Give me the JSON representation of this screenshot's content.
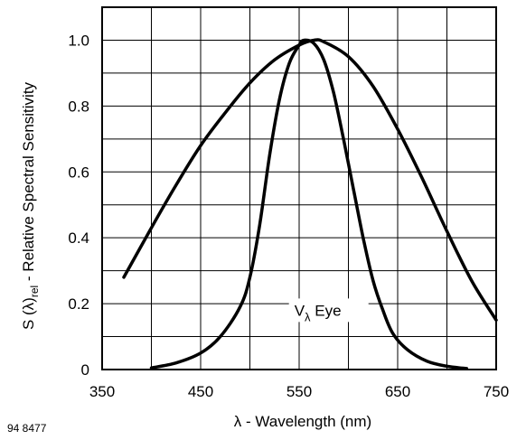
{
  "figure_id": "94 8477",
  "chart_data": {
    "type": "line",
    "xlabel": "λ - Wavelength (nm)",
    "ylabel": "S (λ)rel - Relative Spectral Sensitivity",
    "ylabel_parts": {
      "main": "S (λ)",
      "sub": "rel",
      "rest": " - Relative Spectral Sensitivity"
    },
    "xlim": [
      350,
      750
    ],
    "ylim": [
      0,
      1.1
    ],
    "x_ticks": [
      350,
      450,
      550,
      650,
      750
    ],
    "y_ticks": [
      {
        "value": 0,
        "label": "0"
      },
      {
        "value": 0.2,
        "label": "0.2"
      },
      {
        "value": 0.4,
        "label": "0.4"
      },
      {
        "value": 0.6,
        "label": "0.6"
      },
      {
        "value": 0.8,
        "label": "0.8"
      },
      {
        "value": 1.0,
        "label": "1.0"
      }
    ],
    "grid": true,
    "grid_x_step": 50,
    "grid_y_step": 0.1,
    "series": [
      {
        "points": [
          [
            372,
            0.28
          ],
          [
            400,
            0.43
          ],
          [
            425,
            0.56
          ],
          [
            450,
            0.68
          ],
          [
            475,
            0.78
          ],
          [
            500,
            0.87
          ],
          [
            525,
            0.94
          ],
          [
            550,
            0.985
          ],
          [
            565,
            1.0
          ],
          [
            575,
            0.995
          ],
          [
            600,
            0.95
          ],
          [
            625,
            0.86
          ],
          [
            650,
            0.73
          ],
          [
            675,
            0.58
          ],
          [
            700,
            0.42
          ],
          [
            725,
            0.27
          ],
          [
            750,
            0.15
          ]
        ]
      },
      {
        "points": [
          [
            400,
            0.005
          ],
          [
            425,
            0.02
          ],
          [
            450,
            0.05
          ],
          [
            470,
            0.1
          ],
          [
            490,
            0.19
          ],
          [
            500,
            0.28
          ],
          [
            510,
            0.44
          ],
          [
            520,
            0.65
          ],
          [
            530,
            0.82
          ],
          [
            540,
            0.93
          ],
          [
            550,
            0.985
          ],
          [
            555,
            1.0
          ],
          [
            565,
            0.99
          ],
          [
            575,
            0.94
          ],
          [
            585,
            0.84
          ],
          [
            595,
            0.7
          ],
          [
            605,
            0.55
          ],
          [
            615,
            0.4
          ],
          [
            625,
            0.27
          ],
          [
            635,
            0.18
          ],
          [
            645,
            0.11
          ],
          [
            660,
            0.06
          ],
          [
            680,
            0.025
          ],
          [
            700,
            0.01
          ],
          [
            720,
            0.003
          ]
        ]
      }
    ],
    "annotation": {
      "main": "V",
      "sub": "λ",
      "rest": " Eye",
      "x": 580,
      "y": 0.18
    }
  }
}
